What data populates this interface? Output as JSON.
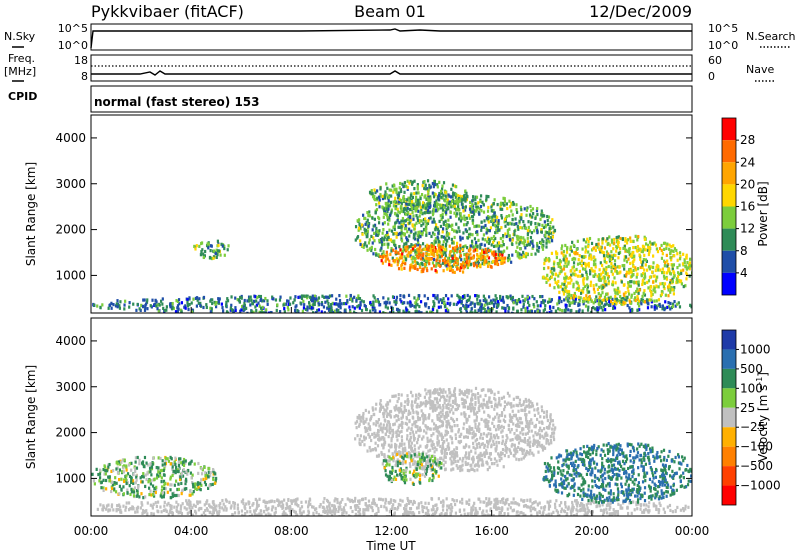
{
  "header": {
    "station": "Pykkvibaer (fitACF)",
    "beam": "Beam 01",
    "date": "12/Dec/2009"
  },
  "top_panel": {
    "left_label": "N.Sky",
    "right_label": "N.Search",
    "left_ticks": [
      "10^5",
      "10^0"
    ],
    "right_ticks": [
      "10^5",
      "10^0"
    ]
  },
  "freq_panel": {
    "left_label_1": "Freq.",
    "left_label_2": "[MHz]",
    "right_label": "Nave",
    "left_ticks": [
      "18",
      "8"
    ],
    "right_ticks": [
      "60",
      "0"
    ]
  },
  "cpid_panel": {
    "label": "CPID",
    "text": "normal (fast stereo) 153"
  },
  "power_panel": {
    "ylabel": "Slant Range [km]",
    "yticks": [
      "4000",
      "3000",
      "2000",
      "1000"
    ],
    "colorbar_label": "Power [dB]",
    "colorbar_ticks": [
      "28",
      "24",
      "20",
      "16",
      "12",
      "8",
      "4"
    ],
    "colorbar_colors": [
      "#ff0000",
      "#ff6a00",
      "#ffa500",
      "#ffd700",
      "#7ccd3c",
      "#2e8b57",
      "#1f4ea8",
      "#0000ff"
    ]
  },
  "velocity_panel": {
    "ylabel": "Slant Range [km]",
    "yticks": [
      "4000",
      "3000",
      "2000",
      "1000"
    ],
    "colorbar_label": "Velocity [m s",
    "colorbar_label_sup": "-1",
    "colorbar_label_end": "]",
    "colorbar_ticks": [
      "1000",
      "500",
      "100",
      "25",
      "−25",
      "−100",
      "−500",
      "−1000"
    ],
    "colorbar_colors": [
      "#1e3aa8",
      "#2a6fb0",
      "#2e8b57",
      "#7ccd3c",
      "#c0c0c0",
      "#ffb000",
      "#ff8000",
      "#ff4000",
      "#ff0000"
    ]
  },
  "x_axis": {
    "label": "Time UT",
    "ticks": [
      "00:00",
      "04:00",
      "08:00",
      "12:00",
      "16:00",
      "20:00",
      "00:00"
    ]
  },
  "chart_data": [
    {
      "type": "heatmap",
      "title": "Pykkvibaer (fitACF) Beam 01 12/Dec/2009 — Power",
      "xlabel": "Time UT",
      "ylabel": "Slant Range [km]",
      "xlim": [
        0,
        24
      ],
      "ylim": [
        180,
        4500
      ],
      "zlabel": "Power [dB]",
      "zlim": [
        0,
        30
      ],
      "regions": [
        {
          "x": [
            0,
            24
          ],
          "y": [
            180,
            600
          ],
          "level": 8
        },
        {
          "x": [
            4,
            5.5
          ],
          "y": [
            1400,
            1800
          ],
          "level": 12
        },
        {
          "x": [
            10.5,
            18.5
          ],
          "y": [
            1200,
            2800
          ],
          "level": 12
        },
        {
          "x": [
            11.5,
            16.5
          ],
          "y": [
            1100,
            1700
          ],
          "level": 24
        },
        {
          "x": [
            11,
            15
          ],
          "y": [
            2400,
            3100
          ],
          "level": 12
        },
        {
          "x": [
            18,
            24
          ],
          "y": [
            400,
            1900
          ],
          "level": 16
        }
      ]
    },
    {
      "type": "heatmap",
      "title": "Pykkvibaer (fitACF) Beam 01 12/Dec/2009 — Velocity",
      "xlabel": "Time UT",
      "ylabel": "Slant Range [km]",
      "xlim": [
        0,
        24
      ],
      "ylim": [
        180,
        4500
      ],
      "zlabel": "Velocity [m s-1]",
      "zlim": [
        -1000,
        1000
      ],
      "regions": [
        {
          "x": [
            0,
            24
          ],
          "y": [
            180,
            600
          ],
          "level": 0
        },
        {
          "x": [
            0,
            5
          ],
          "y": [
            600,
            1500
          ],
          "level": 100
        },
        {
          "x": [
            10.5,
            18.5
          ],
          "y": [
            1200,
            3000
          ],
          "level": 0
        },
        {
          "x": [
            11.5,
            14
          ],
          "y": [
            900,
            1600
          ],
          "level": 100
        },
        {
          "x": [
            18,
            24
          ],
          "y": [
            500,
            1800
          ],
          "level": 500
        }
      ]
    }
  ]
}
